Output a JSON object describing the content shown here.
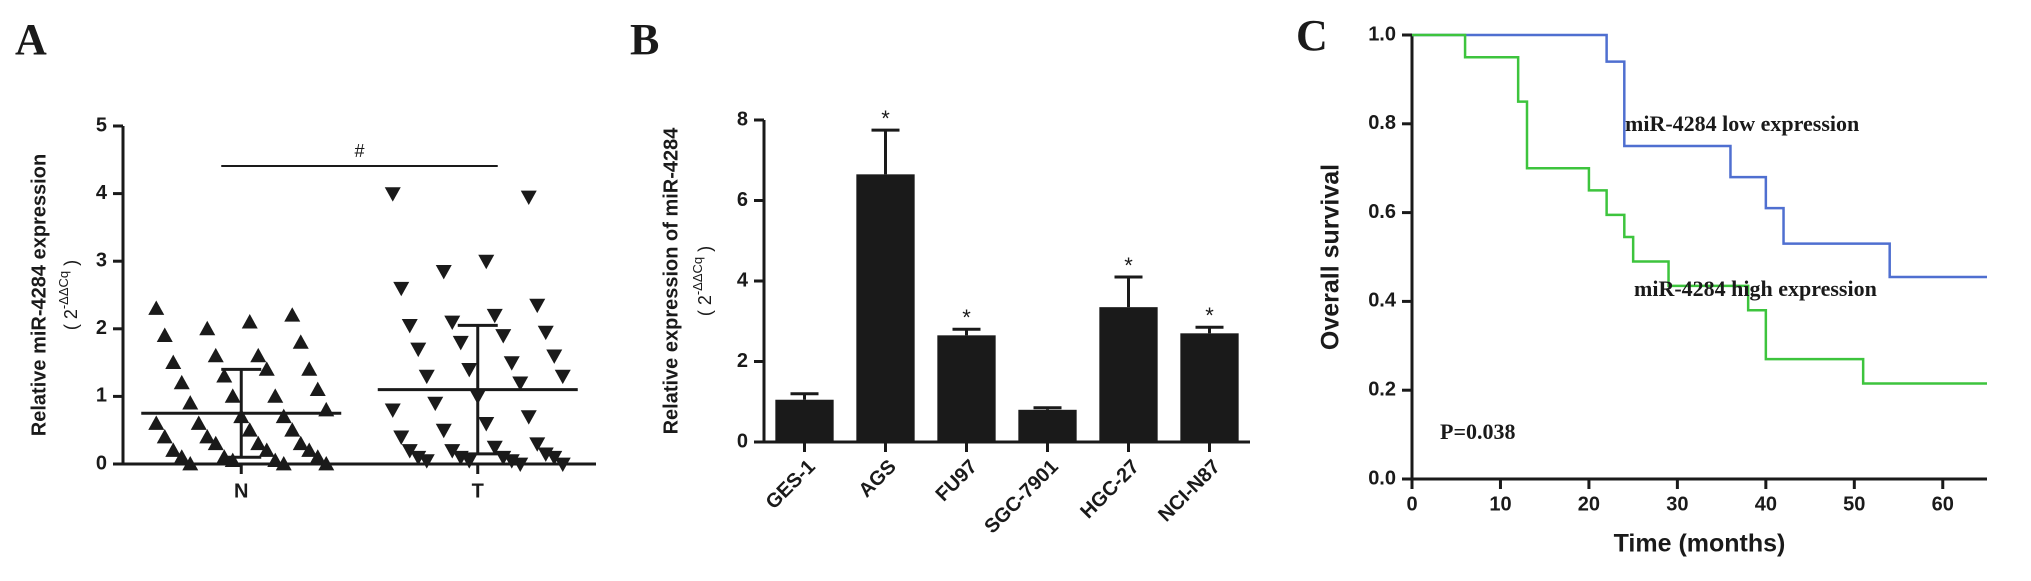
{
  "chart_data": [
    {
      "type": "scatter",
      "panel_label": "A",
      "y_label": "Relative miR-4284 expression",
      "y_label_unit": [
        "( 2",
        "-ΔΔCq",
        " )"
      ],
      "categories": [
        "N",
        "T"
      ],
      "series": [
        {
          "marker": "triangle-up",
          "color": "#1a1a1a",
          "values": [
            2.3,
            2.2,
            2.1,
            2.0,
            1.9,
            1.8,
            1.6,
            1.6,
            1.5,
            1.4,
            1.4,
            1.3,
            1.2,
            1.1,
            1.0,
            1.0,
            0.9,
            0.8,
            0.7,
            0.7,
            0.6,
            0.6,
            0.5,
            0.5,
            0.4,
            0.4,
            0.3,
            0.3,
            0.3,
            0.2,
            0.2,
            0.2,
            0.1,
            0.1,
            0.1,
            0.05,
            0.05,
            0.0,
            0.0,
            0.0
          ]
        },
        {
          "marker": "triangle-down",
          "color": "#1a1a1a",
          "values": [
            4.0,
            3.95,
            3.0,
            2.85,
            2.6,
            2.35,
            2.2,
            2.1,
            2.05,
            1.95,
            1.9,
            1.8,
            1.7,
            1.6,
            1.5,
            1.4,
            1.3,
            1.3,
            1.2,
            1.0,
            0.9,
            0.8,
            0.7,
            0.6,
            0.5,
            0.4,
            0.3,
            0.25,
            0.2,
            0.2,
            0.15,
            0.1,
            0.1,
            0.1,
            0.1,
            0.05,
            0.05,
            0.05,
            0.0,
            0.0
          ]
        }
      ],
      "means": [
        0.75,
        1.1
      ],
      "sd": [
        0.65,
        0.95
      ],
      "annotation": "#",
      "ylim": [
        0,
        5
      ],
      "yticks": [
        0,
        1,
        2,
        3,
        4,
        5
      ]
    },
    {
      "type": "bar",
      "panel_label": "B",
      "y_label": "Relative expression of miR-4284",
      "y_label_unit": [
        "( 2",
        "-ΔΔCq",
        " )"
      ],
      "categories": [
        "GES-1",
        "AGS",
        "FU97",
        "SGC-7901",
        "HGC-27",
        "NCI-N87"
      ],
      "values": [
        1.05,
        6.65,
        2.65,
        0.8,
        3.35,
        2.7
      ],
      "errors": [
        0.15,
        1.1,
        0.15,
        0.05,
        0.75,
        0.15
      ],
      "significance": [
        null,
        "*",
        "*",
        null,
        "*",
        "*"
      ],
      "color": "#1a1a1a",
      "ylim": [
        0,
        8
      ],
      "yticks": [
        0,
        2,
        4,
        6,
        8
      ]
    },
    {
      "type": "line",
      "step": true,
      "panel_label": "C",
      "x_label": "Time (months)",
      "y_label": "Overall survival",
      "series": [
        {
          "name": "miR-4284 low expression",
          "color": "#4f6fd0",
          "x": [
            0,
            22,
            24,
            36,
            40,
            42,
            54,
            65
          ],
          "values": [
            1.0,
            0.94,
            0.75,
            0.68,
            0.61,
            0.53,
            0.455,
            0.455
          ]
        },
        {
          "name": "miR-4284 high expression",
          "color": "#3dc43d",
          "x": [
            0,
            6,
            12,
            13,
            20,
            22,
            24,
            25,
            29,
            38,
            40,
            51,
            65
          ],
          "values": [
            1.0,
            0.95,
            0.85,
            0.7,
            0.65,
            0.595,
            0.545,
            0.49,
            0.435,
            0.38,
            0.27,
            0.215,
            0.215
          ]
        }
      ],
      "annotation": "P=0.038",
      "xlim": [
        0,
        65
      ],
      "xticks": [
        0,
        10,
        20,
        30,
        40,
        50,
        60
      ],
      "ylim": [
        0,
        1.0
      ],
      "yticks": [
        {
          "value": 0,
          "label": "0.0"
        },
        0.2,
        0.4,
        0.6,
        0.8,
        {
          "value": 1,
          "label": "1.0"
        }
      ]
    }
  ]
}
